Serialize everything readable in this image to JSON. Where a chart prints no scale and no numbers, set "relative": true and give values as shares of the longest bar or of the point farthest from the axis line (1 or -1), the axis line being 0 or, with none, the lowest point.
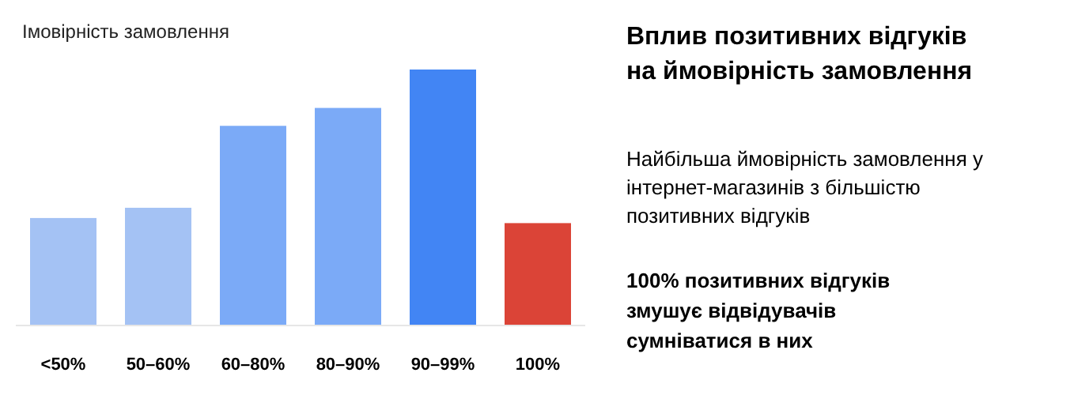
{
  "chart_data": {
    "type": "bar",
    "title": "Вплив позитивних відгуків на ймовірність замовлення",
    "subtitle": "Найбільша ймовірність замовлення у інтернет-магазинів з більшістю позитивних відгуків",
    "ylabel": "Імовірність замовлення",
    "annotations": [
      "100% позитивних відгуків змушує відвідувачів сумніватися в них"
    ],
    "categories": [
      "<50%",
      "50–60%",
      "60–80%",
      "80–90%",
      "90–99%",
      "100%"
    ],
    "values": [
      0.42,
      0.46,
      0.78,
      0.85,
      1,
      0.4
    ],
    "colors": [
      "#a4c2f4",
      "#a4c2f4",
      "#7baaf7",
      "#7baaf7",
      "#4285f4",
      "#db4437"
    ],
    "relative": true
  }
}
